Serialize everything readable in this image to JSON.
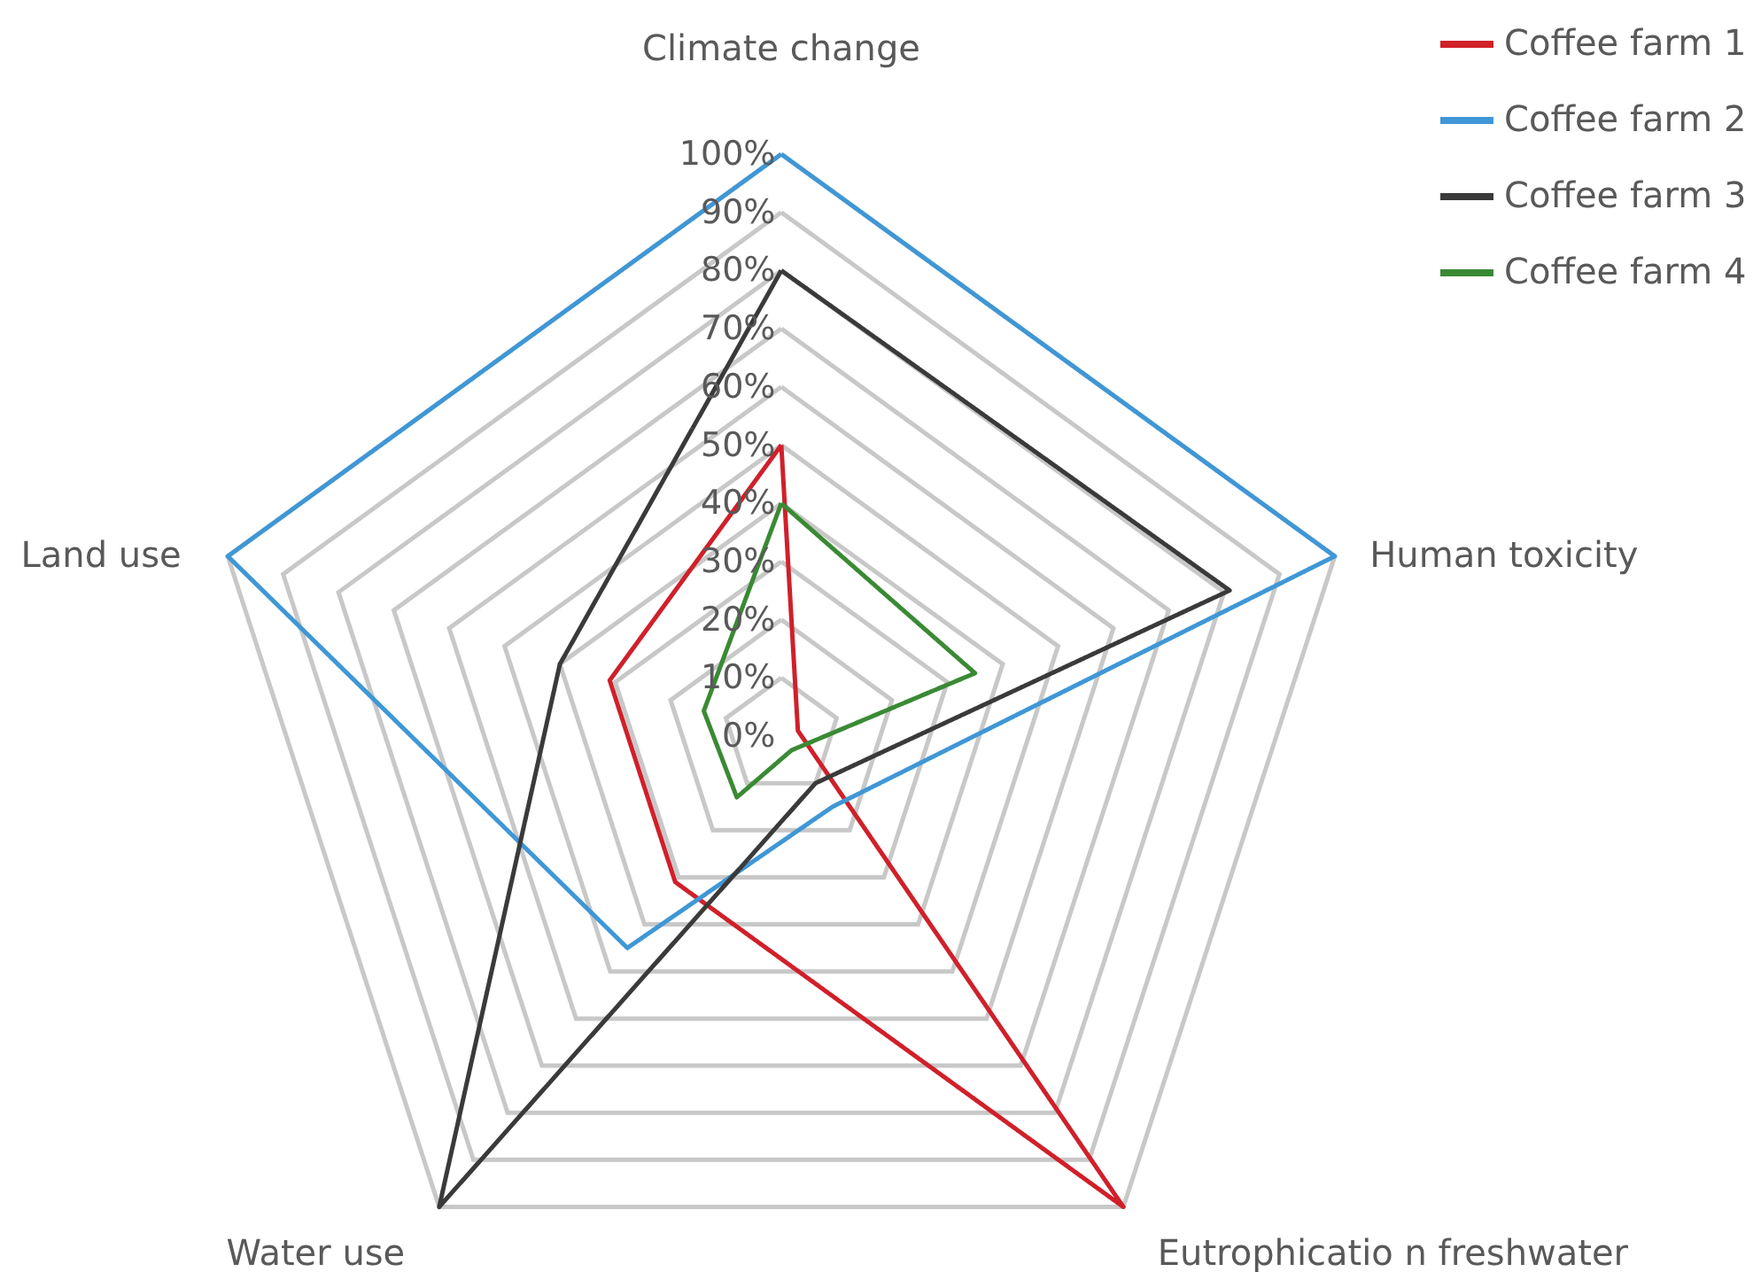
{
  "chart_data": {
    "type": "radar",
    "categories": [
      "Climate change",
      "Human toxicity",
      "Eutrophicatio n freshwater",
      "Water use",
      "Land use"
    ],
    "ylim": [
      0,
      100
    ],
    "yticks": [
      {
        "value": 0,
        "label": "0%"
      },
      {
        "value": 10,
        "label": "10%"
      },
      {
        "value": 20,
        "label": "20%"
      },
      {
        "value": 30,
        "label": "30%"
      },
      {
        "value": 40,
        "label": "40%"
      },
      {
        "value": 50,
        "label": "50%"
      },
      {
        "value": 60,
        "label": "60%"
      },
      {
        "value": 70,
        "label": "70%"
      },
      {
        "value": 80,
        "label": "80%"
      },
      {
        "value": 90,
        "label": "90%"
      },
      {
        "value": 100,
        "label": "100%"
      }
    ],
    "grid": true,
    "legend": "top right",
    "marker": "none",
    "line_style": "solid",
    "series": [
      {
        "name": "Coffee farm 1",
        "color": "#d0202a",
        "values": [
          50,
          3,
          100,
          31,
          31
        ]
      },
      {
        "name": "Coffee farm 2",
        "color": "#3f97d6",
        "values": [
          100,
          100,
          15,
          45,
          100
        ]
      },
      {
        "name": "Coffee farm 3",
        "color": "#3a3a3a",
        "values": [
          80,
          81,
          10,
          100,
          40
        ]
      },
      {
        "name": "Coffee farm 4",
        "color": "#3a8a34",
        "values": [
          40,
          35,
          3,
          13,
          14
        ]
      }
    ]
  }
}
